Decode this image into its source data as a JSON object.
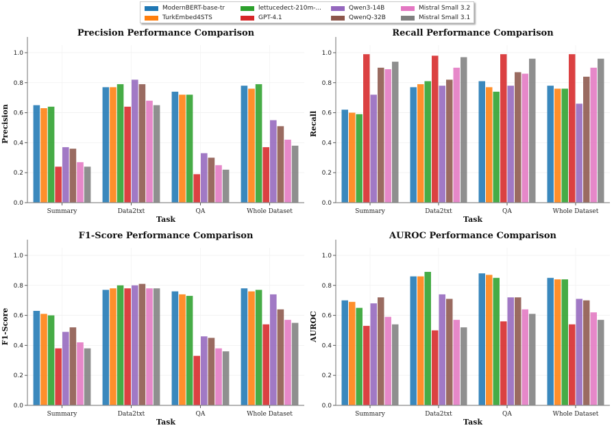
{
  "legend": {
    "entries": [
      "ModernBERT-base-tr",
      "TurkEmbed4STS",
      "lettucedect-210m-...",
      "GPT-4.1",
      "Qwen3-14B",
      "QwenQ-32B",
      "Mistral Small 3.2",
      "Mistral Small 3.1"
    ]
  },
  "colors": [
    "#1f77b4",
    "#ff7f0e",
    "#2ca02c",
    "#d62728",
    "#9467bd",
    "#8c564b",
    "#e377c2",
    "#7f7f7f"
  ],
  "chart_data": [
    {
      "type": "bar",
      "title": "Precision Performance Comparison",
      "xlabel": "Task",
      "ylabel": "Precision",
      "ylim": [
        0,
        1.05
      ],
      "yticks": [
        "0.0",
        "0.2",
        "0.4",
        "0.6",
        "0.8",
        "1.0"
      ],
      "categories": [
        "Summary",
        "Data2txt",
        "QA",
        "Whole Dataset"
      ],
      "series": [
        {
          "name": "ModernBERT-base-tr",
          "values": [
            0.65,
            0.77,
            0.74,
            0.78
          ]
        },
        {
          "name": "TurkEmbed4STS",
          "values": [
            0.63,
            0.77,
            0.72,
            0.76
          ]
        },
        {
          "name": "lettucedect-210m-...",
          "values": [
            0.64,
            0.79,
            0.72,
            0.79
          ]
        },
        {
          "name": "GPT-4.1",
          "values": [
            0.24,
            0.64,
            0.19,
            0.37
          ]
        },
        {
          "name": "Qwen3-14B",
          "values": [
            0.37,
            0.82,
            0.33,
            0.55
          ]
        },
        {
          "name": "QwenQ-32B",
          "values": [
            0.36,
            0.79,
            0.3,
            0.51
          ]
        },
        {
          "name": "Mistral Small 3.2",
          "values": [
            0.27,
            0.68,
            0.25,
            0.42
          ]
        },
        {
          "name": "Mistral Small 3.1",
          "values": [
            0.24,
            0.65,
            0.22,
            0.38
          ]
        }
      ]
    },
    {
      "type": "bar",
      "title": "Recall Performance Comparison",
      "xlabel": "Task",
      "ylabel": "Recall",
      "ylim": [
        0,
        1.05
      ],
      "yticks": [
        "0.0",
        "0.2",
        "0.4",
        "0.6",
        "0.8",
        "1.0"
      ],
      "categories": [
        "Summary",
        "Data2txt",
        "QA",
        "Whole Dataset"
      ],
      "series": [
        {
          "name": "ModernBERT-base-tr",
          "values": [
            0.62,
            0.77,
            0.81,
            0.78
          ]
        },
        {
          "name": "TurkEmbed4STS",
          "values": [
            0.6,
            0.79,
            0.77,
            0.76
          ]
        },
        {
          "name": "lettucedect-210m-...",
          "values": [
            0.59,
            0.81,
            0.74,
            0.76
          ]
        },
        {
          "name": "GPT-4.1",
          "values": [
            0.99,
            0.98,
            0.99,
            0.99
          ]
        },
        {
          "name": "Qwen3-14B",
          "values": [
            0.72,
            0.78,
            0.78,
            0.66
          ]
        },
        {
          "name": "QwenQ-32B",
          "values": [
            0.9,
            0.82,
            0.87,
            0.84
          ]
        },
        {
          "name": "Mistral Small 3.2",
          "values": [
            0.89,
            0.9,
            0.86,
            0.9
          ]
        },
        {
          "name": "Mistral Small 3.1",
          "values": [
            0.94,
            0.97,
            0.96,
            0.96
          ]
        }
      ]
    },
    {
      "type": "bar",
      "title": "F1-Score Performance Comparison",
      "xlabel": "Task",
      "ylabel": "F1-Score",
      "ylim": [
        0,
        1.05
      ],
      "yticks": [
        "0.0",
        "0.2",
        "0.4",
        "0.6",
        "0.8",
        "1.0"
      ],
      "categories": [
        "Summary",
        "Data2txt",
        "QA",
        "Whole Dataset"
      ],
      "series": [
        {
          "name": "ModernBERT-base-tr",
          "values": [
            0.63,
            0.77,
            0.76,
            0.78
          ]
        },
        {
          "name": "TurkEmbed4STS",
          "values": [
            0.61,
            0.78,
            0.74,
            0.76
          ]
        },
        {
          "name": "lettucedect-210m-...",
          "values": [
            0.6,
            0.8,
            0.73,
            0.77
          ]
        },
        {
          "name": "GPT-4.1",
          "values": [
            0.38,
            0.78,
            0.33,
            0.54
          ]
        },
        {
          "name": "Qwen3-14B",
          "values": [
            0.49,
            0.8,
            0.46,
            0.74
          ]
        },
        {
          "name": "QwenQ-32B",
          "values": [
            0.52,
            0.81,
            0.45,
            0.64
          ]
        },
        {
          "name": "Mistral Small 3.2",
          "values": [
            0.42,
            0.78,
            0.38,
            0.57
          ]
        },
        {
          "name": "Mistral Small 3.1",
          "values": [
            0.38,
            0.78,
            0.36,
            0.55
          ]
        }
      ]
    },
    {
      "type": "bar",
      "title": "AUROC Performance Comparison",
      "xlabel": "Task",
      "ylabel": "AUROC",
      "ylim": [
        0,
        1.05
      ],
      "yticks": [
        "0.0",
        "0.2",
        "0.4",
        "0.6",
        "0.8",
        "1.0"
      ],
      "categories": [
        "Summary",
        "Data2txt",
        "QA",
        "Whole Dataset"
      ],
      "series": [
        {
          "name": "ModernBERT-base-tr",
          "values": [
            0.7,
            0.86,
            0.88,
            0.85
          ]
        },
        {
          "name": "TurkEmbed4STS",
          "values": [
            0.69,
            0.86,
            0.87,
            0.84
          ]
        },
        {
          "name": "lettucedect-210m-...",
          "values": [
            0.65,
            0.89,
            0.85,
            0.84
          ]
        },
        {
          "name": "GPT-4.1",
          "values": [
            0.53,
            0.5,
            0.56,
            0.54
          ]
        },
        {
          "name": "Qwen3-14B",
          "values": [
            0.68,
            0.74,
            0.72,
            0.71
          ]
        },
        {
          "name": "QwenQ-32B",
          "values": [
            0.72,
            0.71,
            0.72,
            0.7
          ]
        },
        {
          "name": "Mistral Small 3.2",
          "values": [
            0.59,
            0.57,
            0.64,
            0.62
          ]
        },
        {
          "name": "Mistral Small 3.1",
          "values": [
            0.54,
            0.52,
            0.61,
            0.57
          ]
        }
      ]
    }
  ]
}
